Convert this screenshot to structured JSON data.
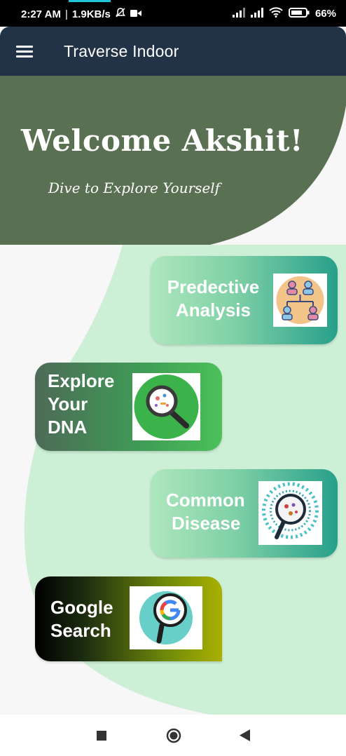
{
  "status": {
    "time": "2:27 AM",
    "speed": "1.9KB/s",
    "battery": "66%",
    "icons": [
      "mute-icon",
      "video-icon",
      "signal-icon",
      "signal-icon",
      "wifi-icon",
      "battery-icon"
    ]
  },
  "appbar": {
    "title": "Traverse Indoor",
    "menu_icon": "hamburger-icon"
  },
  "hero": {
    "welcome": "Welcome Akshit!",
    "tagline": "Dive to Explore Yourself"
  },
  "cards": [
    {
      "line1": "Predective",
      "line2": "Analysis",
      "icon": "network-people-icon"
    },
    {
      "line1": "Explore",
      "line2": "Your",
      "line3": "DNA",
      "icon": "magnifier-bacteria-icon"
    },
    {
      "line1": "Common",
      "line2": "Disease",
      "icon": "microscope-cells-icon"
    },
    {
      "line1": "Google",
      "line2": "Search",
      "icon": "google-search-icon"
    }
  ],
  "navbar": {
    "buttons": [
      "recents-square-icon",
      "home-circle-icon",
      "back-triangle-icon"
    ]
  },
  "colors": {
    "appbar": "#233347",
    "hero": "#5a7052",
    "mint": "#ccefd5",
    "accent_teal": "#27a08a"
  }
}
